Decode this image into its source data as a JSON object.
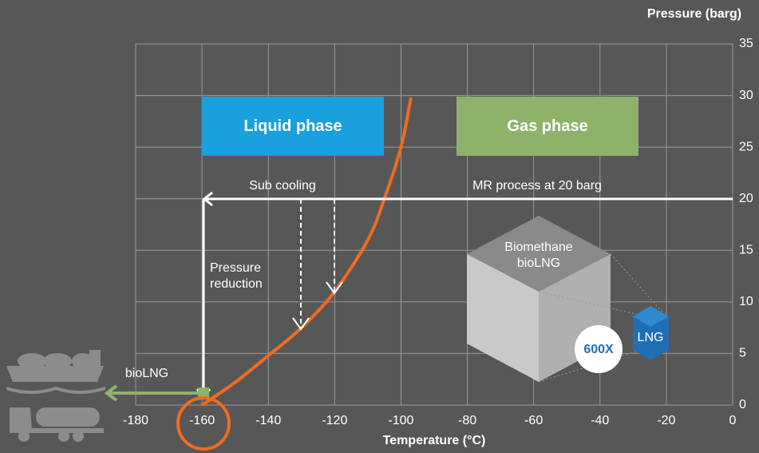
{
  "chart_data": {
    "type": "line",
    "xlabel": "Temperature (°C)",
    "ylabel": "Pressure (barg)",
    "xlim": [
      -180,
      0
    ],
    "ylim": [
      0,
      35
    ],
    "xticks": [
      -180,
      -160,
      -140,
      -120,
      -100,
      -80,
      -60,
      -40,
      -20,
      0
    ],
    "yticks": [
      0,
      5,
      10,
      15,
      20,
      25,
      30,
      35
    ],
    "grid": true,
    "x": [
      -160,
      -150,
      -140,
      -130,
      -120,
      -110,
      -105,
      -100,
      -97
    ],
    "values": [
      0,
      2.2,
      4.8,
      7.5,
      11,
      16,
      20,
      25,
      29.8
    ],
    "color": "#f26b21",
    "annotations": {
      "liquid": "Liquid phase",
      "gas": "Gas phase",
      "subcooling": "Sub cooling",
      "mr": "MR process at 20 barg",
      "reduction": "Pressure reduction",
      "cube": "Biomethane bioLNG",
      "lng": "LNG",
      "ratio": "600X",
      "biolng": "bioLNG"
    }
  }
}
